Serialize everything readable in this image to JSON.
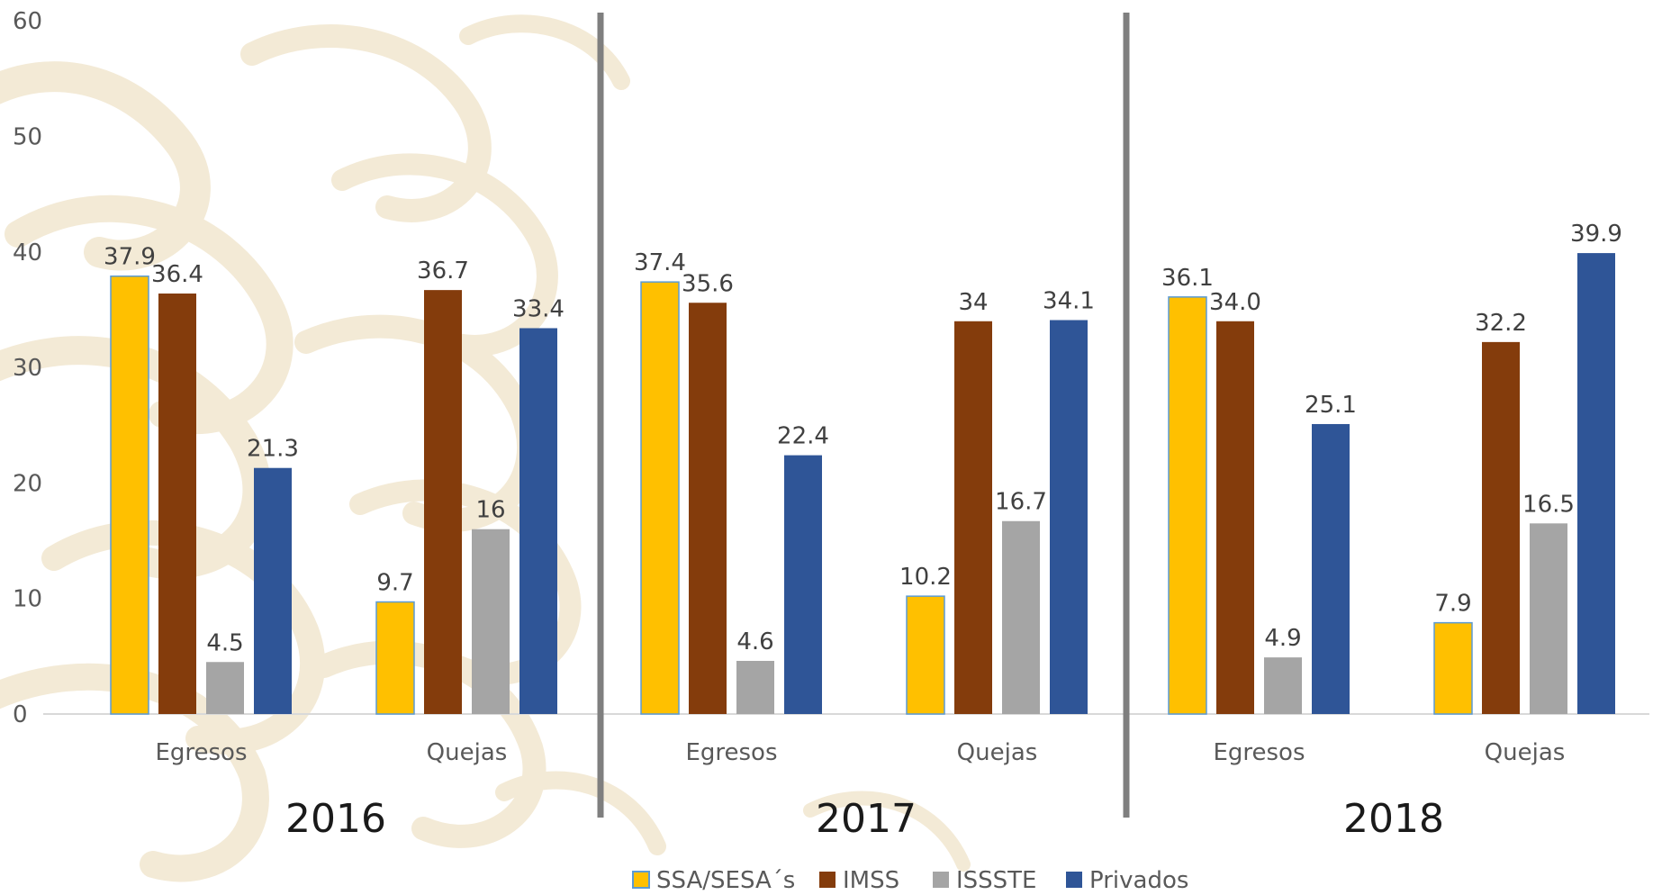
{
  "chart_data": {
    "type": "bar",
    "y_ticks": [
      "0",
      "10",
      "20",
      "30",
      "40",
      "50",
      "60"
    ],
    "ylim": [
      0,
      60
    ],
    "legend_position": "bottom",
    "grid": false,
    "series": [
      {
        "name": "SSA/SESA´s",
        "color": "#FFC000"
      },
      {
        "name": "IMSS",
        "color": "#843C0C"
      },
      {
        "name": "ISSSTE",
        "color": "#A5A5A5"
      },
      {
        "name": "Privados",
        "color": "#2F5597"
      }
    ],
    "panels": [
      {
        "year": "2016",
        "groups": [
          {
            "category": "Egresos",
            "values": [
              37.9,
              36.4,
              4.5,
              21.3
            ],
            "labels": [
              "37.9",
              "36.4",
              "4.5",
              "21.3"
            ]
          },
          {
            "category": "Quejas",
            "values": [
              9.7,
              36.7,
              16,
              33.4
            ],
            "labels": [
              "9.7",
              "36.7",
              "16",
              "33.4"
            ]
          }
        ]
      },
      {
        "year": "2017",
        "groups": [
          {
            "category": "Egresos",
            "values": [
              37.4,
              35.6,
              4.6,
              22.4
            ],
            "labels": [
              "37.4",
              "35.6",
              "4.6",
              "22.4"
            ]
          },
          {
            "category": "Quejas",
            "values": [
              10.2,
              34,
              16.7,
              34.1
            ],
            "labels": [
              "10.2",
              "34",
              "16.7",
              "34.1"
            ]
          }
        ]
      },
      {
        "year": "2018",
        "groups": [
          {
            "category": "Egresos",
            "values": [
              36.1,
              34.0,
              4.9,
              25.1
            ],
            "labels": [
              "36.1",
              "34.0",
              "4.9",
              "25.1"
            ]
          },
          {
            "category": "Quejas",
            "values": [
              7.9,
              32.2,
              16.5,
              39.9
            ],
            "labels": [
              "7.9",
              "32.2",
              "16.5",
              "39.9"
            ]
          }
        ]
      }
    ]
  }
}
